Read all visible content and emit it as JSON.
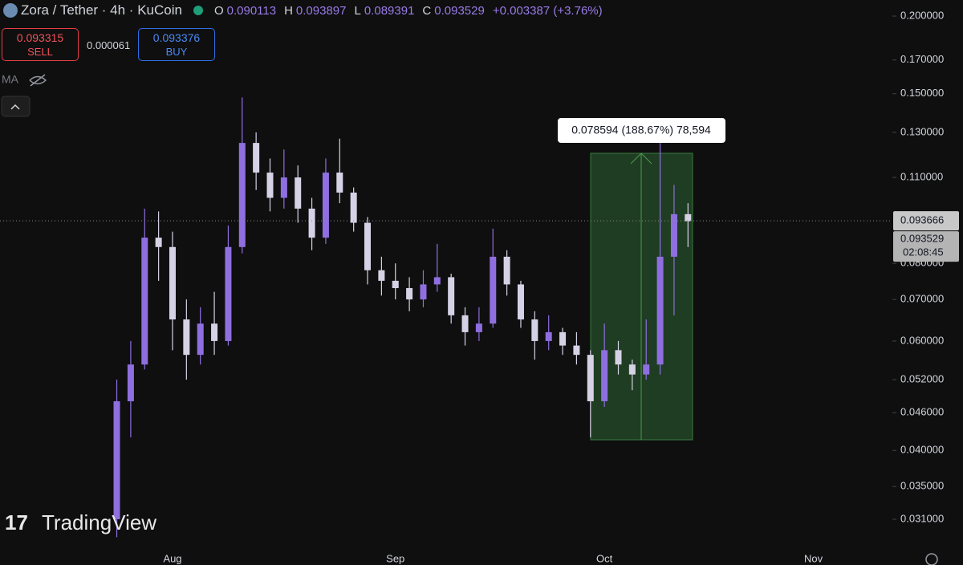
{
  "header": {
    "symbol": "Zora / Tether · 4h · KuCoin",
    "ohlc": [
      {
        "key": "O",
        "value": 0.090113
      },
      {
        "key": "H",
        "value": 0.093897
      },
      {
        "key": "L",
        "value": 0.089391
      },
      {
        "key": "C",
        "value": 0.093529
      }
    ],
    "change": "+0.003387 (+3.76%)"
  },
  "trade": {
    "sell": 0.093315,
    "sell_label": "SELL",
    "spread": 6.1e-05,
    "buy": 0.093376,
    "buy_label": "BUY"
  },
  "indicator": "MA",
  "watermark": "TradingView",
  "measure_label": "0.078594 (188.67%) 78,594",
  "chart_data": {
    "type": "candlestick",
    "log_scale": true,
    "categories": [
      null,
      null,
      null,
      null,
      null,
      "Aug",
      null,
      null,
      null,
      null,
      null,
      null,
      null,
      null,
      null,
      null,
      null,
      null,
      null,
      null,
      null,
      "Sep",
      null,
      null,
      null,
      null,
      null,
      null,
      null,
      null,
      null,
      null,
      null,
      null,
      null,
      null,
      "Oct",
      null,
      null,
      null,
      null,
      null,
      null,
      null,
      null,
      null,
      null,
      null,
      null,
      null,
      null,
      "Nov",
      null,
      null,
      null,
      null,
      null
    ],
    "open": [
      null,
      0.031,
      0.048,
      0.055,
      0.088,
      0.085,
      0.065,
      0.057,
      0.064,
      0.06,
      0.085,
      0.125,
      0.112,
      0.102,
      0.11,
      0.098,
      0.088,
      0.112,
      0.104,
      0.093,
      0.078,
      0.075,
      0.073,
      0.07,
      0.074,
      0.076,
      0.066,
      0.062,
      0.064,
      0.082,
      0.074,
      0.065,
      0.06,
      0.062,
      0.059,
      0.057,
      0.048,
      0.058,
      0.055,
      0.053,
      0.055,
      0.082,
      0.096,
      null,
      null,
      null,
      null,
      null,
      null,
      null,
      null,
      null,
      null,
      null,
      null,
      null,
      null
    ],
    "high": [
      null,
      0.052,
      0.06,
      0.098,
      0.097,
      0.09,
      0.07,
      0.068,
      0.072,
      0.092,
      0.148,
      0.13,
      0.118,
      0.122,
      0.115,
      0.102,
      0.118,
      0.127,
      0.106,
      0.095,
      0.082,
      0.08,
      0.076,
      0.078,
      0.086,
      0.077,
      0.068,
      0.068,
      0.091,
      0.084,
      0.075,
      0.067,
      0.066,
      0.063,
      0.062,
      0.058,
      0.064,
      0.06,
      0.056,
      0.065,
      0.125,
      0.107,
      0.1,
      null,
      null,
      null,
      null,
      null,
      null,
      null,
      null,
      null,
      null,
      null,
      null,
      null,
      null
    ],
    "low": [
      null,
      0.029,
      0.042,
      0.054,
      0.075,
      0.058,
      0.052,
      0.055,
      0.057,
      0.059,
      0.083,
      0.105,
      0.097,
      0.098,
      0.093,
      0.084,
      0.086,
      0.1,
      0.09,
      0.074,
      0.071,
      0.07,
      0.067,
      0.068,
      0.072,
      0.064,
      0.059,
      0.06,
      0.063,
      0.071,
      0.063,
      0.056,
      0.058,
      0.057,
      0.055,
      0.042,
      0.047,
      0.053,
      0.05,
      0.052,
      0.053,
      0.066,
      0.085,
      null,
      null,
      null,
      null,
      null,
      null,
      null,
      null,
      null,
      null,
      null,
      null,
      null,
      null
    ],
    "close": [
      null,
      0.048,
      0.055,
      0.088,
      0.085,
      0.065,
      0.057,
      0.064,
      0.06,
      0.085,
      0.125,
      0.112,
      0.102,
      0.11,
      0.098,
      0.088,
      0.112,
      0.104,
      0.093,
      0.078,
      0.075,
      0.073,
      0.07,
      0.074,
      0.076,
      0.066,
      0.062,
      0.064,
      0.082,
      0.074,
      0.065,
      0.06,
      0.062,
      0.059,
      0.057,
      0.048,
      0.058,
      0.055,
      0.053,
      0.055,
      0.082,
      0.096,
      0.093529,
      null,
      null,
      null,
      null,
      null,
      null,
      null,
      null,
      null,
      null,
      null,
      null,
      null,
      null
    ],
    "up_color": "#8f6fe0",
    "down_color": "#d6d2e6",
    "ylim": [
      0.0281,
      0.2123
    ],
    "yticks": [
      {
        "value": 0.2,
        "label": "0.200000"
      },
      {
        "value": 0.17,
        "label": "0.170000"
      },
      {
        "value": 0.15,
        "label": "0.150000"
      },
      {
        "value": 0.13,
        "label": "0.130000"
      },
      {
        "value": 0.11,
        "label": "0.110000"
      },
      {
        "value": 0.08,
        "label": "0.080000"
      },
      {
        "value": 0.07,
        "label": "0.070000"
      },
      {
        "value": 0.06,
        "label": "0.060000"
      },
      {
        "value": 0.052,
        "label": "0.052000"
      },
      {
        "value": 0.046,
        "label": "0.046000"
      },
      {
        "value": 0.04,
        "label": "0.040000"
      },
      {
        "value": 0.035,
        "label": "0.035000"
      },
      {
        "value": 0.031,
        "label": "0.031000"
      }
    ],
    "last_price": 0.093666,
    "price_tag": {
      "value": 0.093529,
      "countdown": "02:08:45"
    }
  }
}
